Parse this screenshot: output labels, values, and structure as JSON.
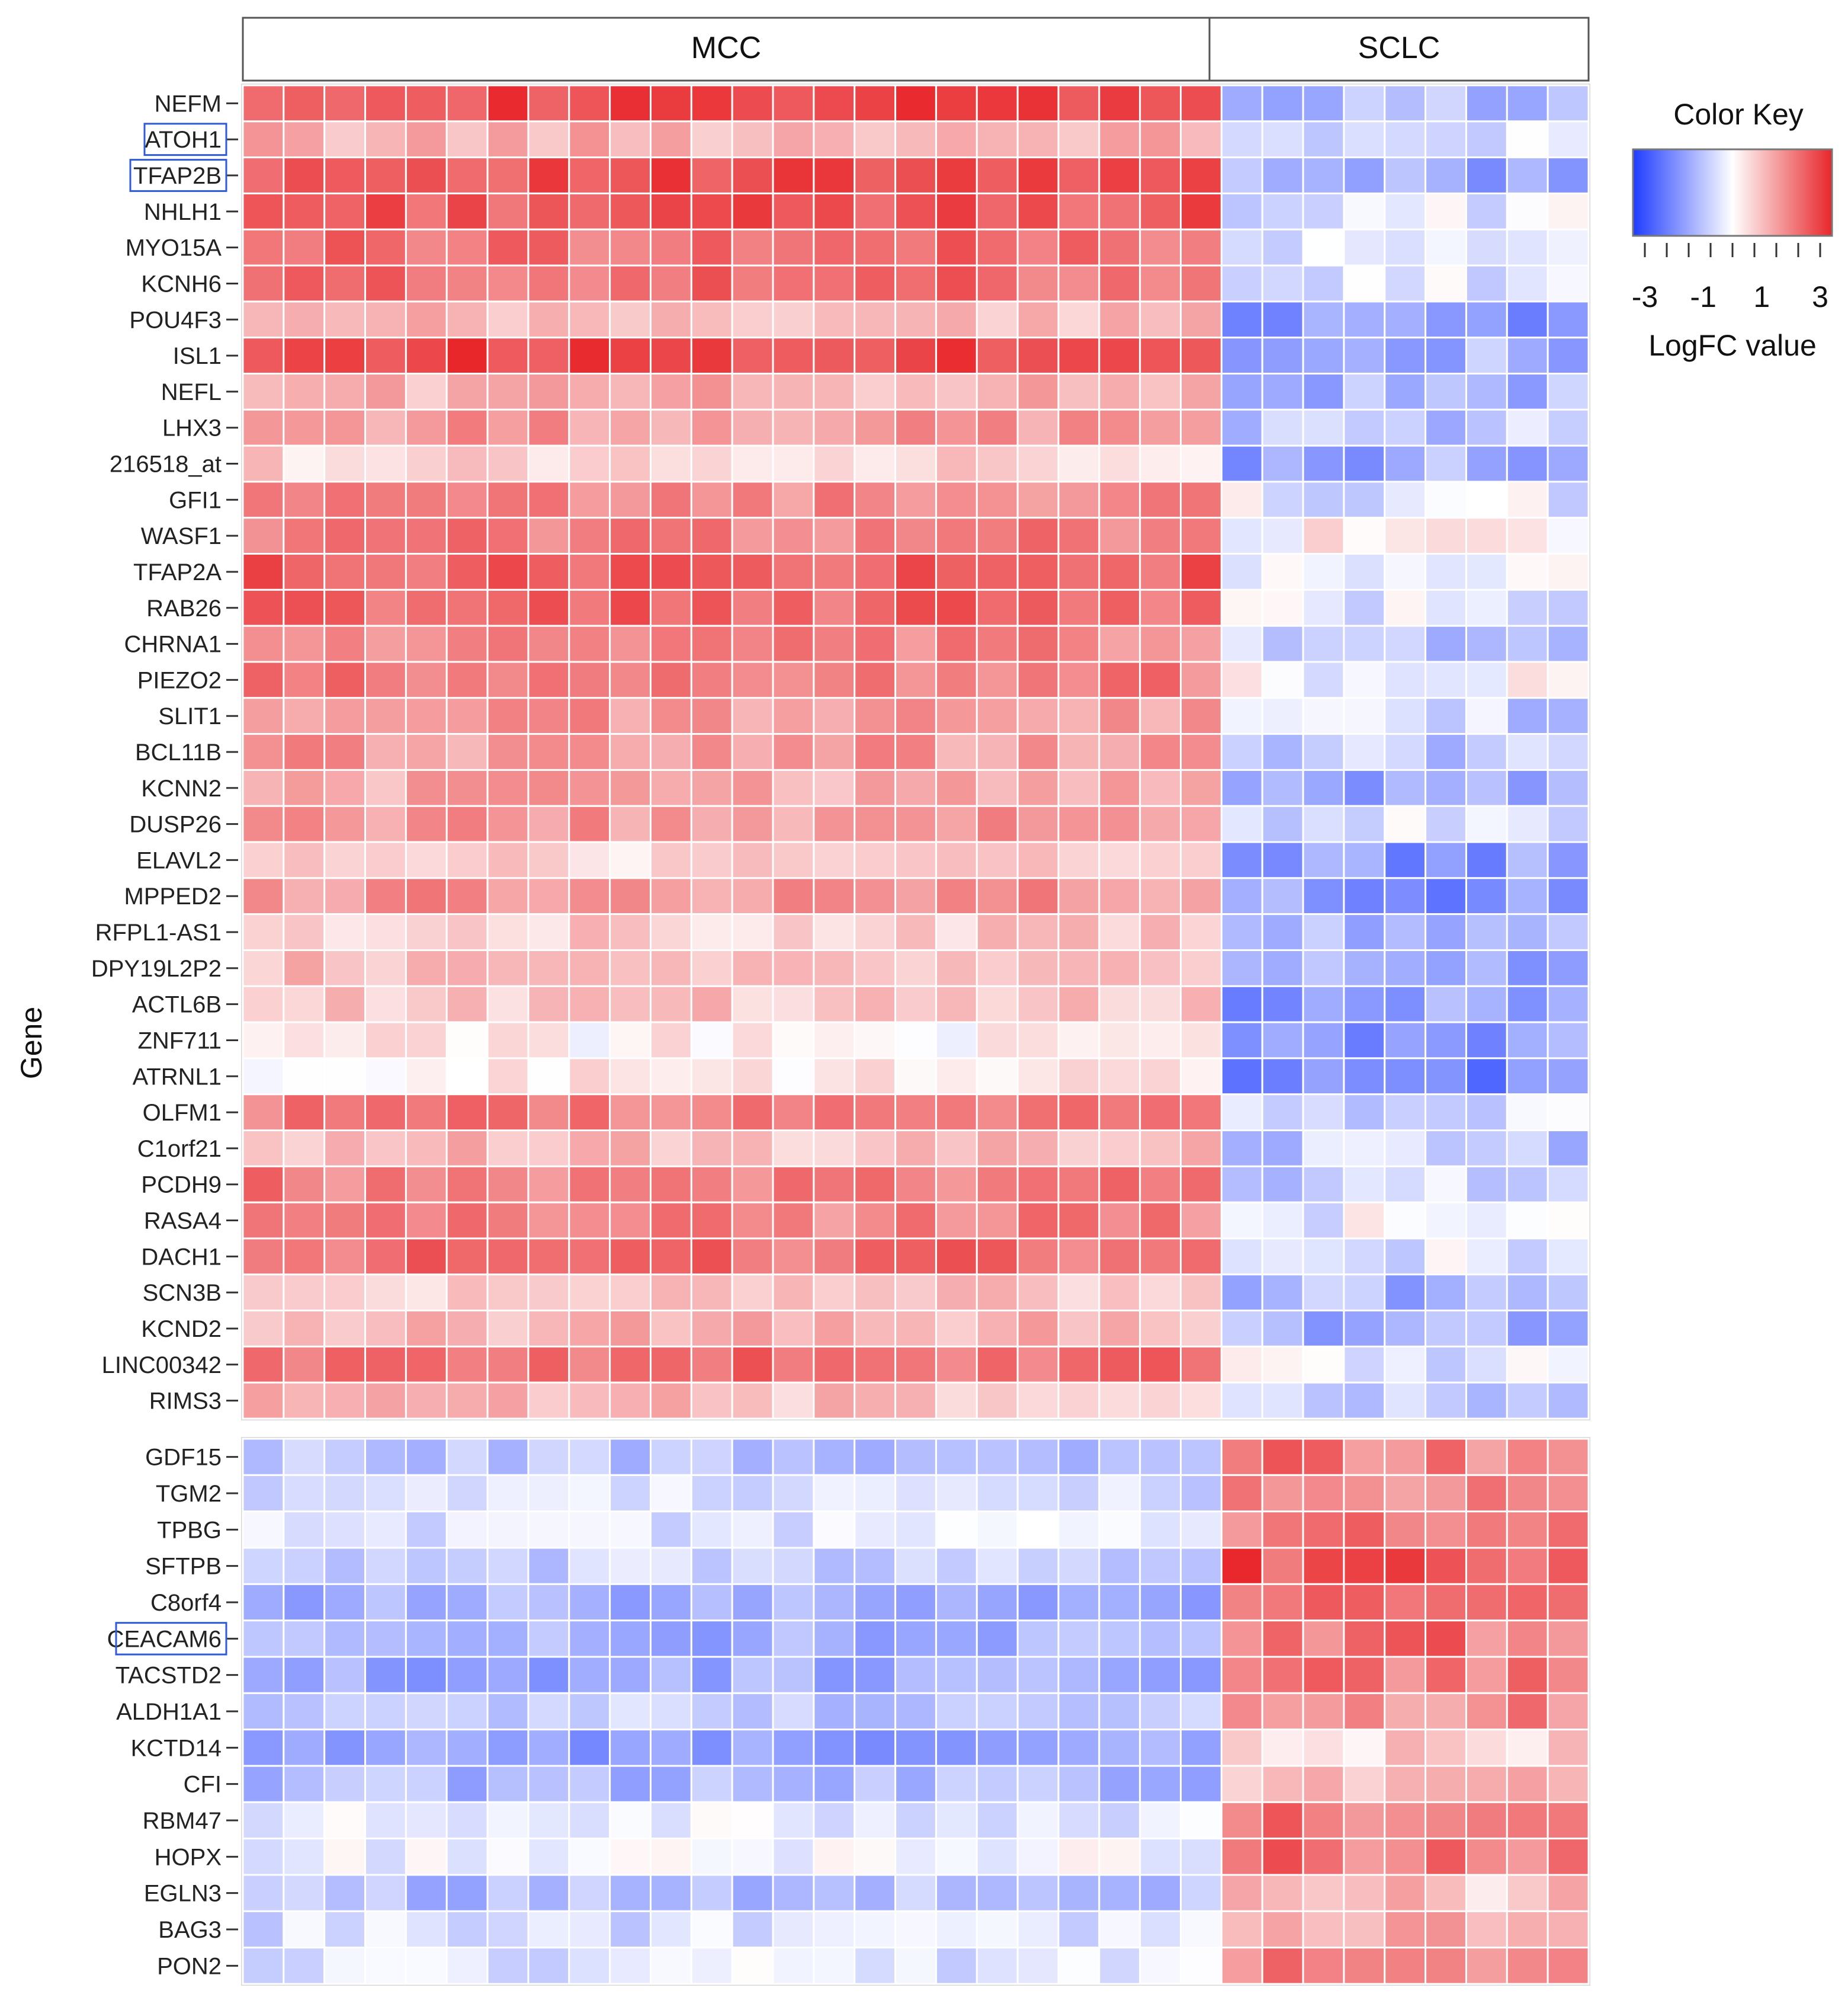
{
  "chart_data": {
    "type": "heatmap",
    "title": "",
    "ylabel": "Gene",
    "column_groups": [
      {
        "name": "MCC",
        "n_columns": 24
      },
      {
        "name": "SCLC",
        "n_columns": 9
      }
    ],
    "highlighted_genes": [
      "ATOH1",
      "TFAP2B",
      "CEACAM6"
    ],
    "color_key": {
      "title": "Color Key",
      "label": "LogFC value",
      "ticks": [
        "-3",
        "-1",
        "1",
        "3"
      ],
      "range": [
        -3,
        3
      ],
      "low_color": "#1f3cff",
      "mid_color": "#ffffff",
      "high_color": "#e8262a"
    },
    "row_blocks": [
      {
        "name": "upper",
        "genes": [
          "NEFM",
          "ATOH1",
          "TFAP2B",
          "NHLH1",
          "MYO15A",
          "KCNH6",
          "POU4F3",
          "ISL1",
          "NEFL",
          "LHX3",
          "216518_at",
          "GFI1",
          "WASF1",
          "TFAP2A",
          "RAB26",
          "CHRNA1",
          "PIEZO2",
          "SLIT1",
          "BCL11B",
          "KCNN2",
          "DUSP26",
          "ELAVL2",
          "MPPED2",
          "RFPL1-AS1",
          "DPY19L2P2",
          "ACTL6B",
          "ZNF711",
          "ATRNL1",
          "OLFM1",
          "C1orf21",
          "PCDH9",
          "RASA4",
          "DACH1",
          "SCN3B",
          "KCND2",
          "LINC00342",
          "RIMS3"
        ],
        "mcc_mean": [
          2.5,
          1.1,
          2.4,
          2.3,
          2.0,
          2.0,
          0.9,
          2.6,
          1.1,
          1.4,
          0.6,
          1.6,
          1.8,
          2.2,
          2.1,
          1.6,
          1.8,
          1.4,
          1.4,
          1.2,
          1.4,
          0.6,
          1.5,
          0.7,
          0.9,
          0.8,
          0.2,
          0.3,
          1.8,
          0.9,
          1.8,
          1.7,
          2.0,
          0.8,
          1.0,
          2.0,
          0.9
        ],
        "sclc_mean": [
          -1.2,
          -0.6,
          -1.3,
          -0.4,
          -0.5,
          -0.3,
          -1.4,
          -1.2,
          -1.1,
          -0.8,
          -1.3,
          -0.3,
          0.1,
          -0.3,
          -0.3,
          -0.8,
          -0.1,
          -0.7,
          -0.9,
          -1.2,
          -0.5,
          -1.5,
          -1.6,
          -1.3,
          -1.3,
          -1.5,
          -1.6,
          -1.8,
          -0.6,
          -0.8,
          -0.6,
          -0.2,
          -0.4,
          -1.1,
          -1.1,
          -0.3,
          -0.9
        ]
      },
      {
        "name": "lower",
        "genes": [
          "GDF15",
          "TGM2",
          "TPBG",
          "SFTPB",
          "C8orf4",
          "CEACAM6",
          "TACSTD2",
          "ALDH1A1",
          "KCTD14",
          "CFI",
          "RBM47",
          "HOPX",
          "EGLN3",
          "BAG3",
          "PON2"
        ],
        "mcc_mean": [
          -0.9,
          -0.5,
          -0.4,
          -0.7,
          -1.2,
          -1.2,
          -1.3,
          -0.8,
          -1.4,
          -1.1,
          -0.3,
          -0.2,
          -1.0,
          -0.5,
          -0.4
        ],
        "sclc_mean": [
          1.8,
          1.6,
          1.7,
          2.4,
          1.8,
          1.9,
          1.8,
          1.7,
          0.5,
          1.0,
          1.9,
          1.9,
          0.8,
          1.2,
          1.6
        ]
      }
    ]
  }
}
